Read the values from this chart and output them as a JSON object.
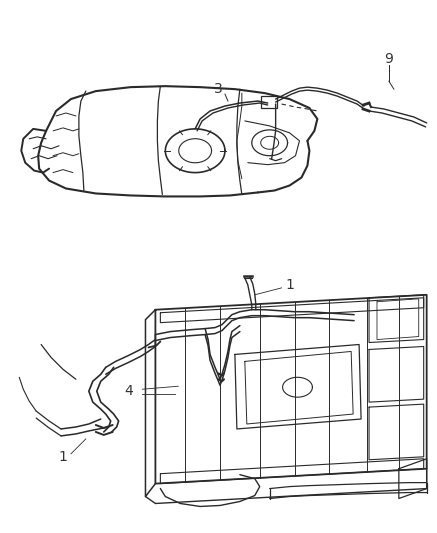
{
  "background_color": "#ffffff",
  "line_color": "#2a2a2a",
  "label_color": "#333333",
  "figsize": [
    4.37,
    5.33
  ],
  "dpi": 100
}
